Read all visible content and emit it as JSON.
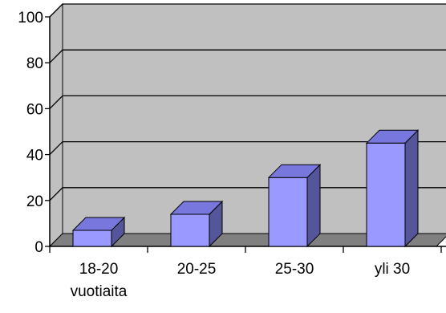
{
  "chart_data": {
    "type": "bar",
    "style": "3d-column",
    "categories": [
      [
        "18-20",
        "vuotiaita"
      ],
      [
        "20-25"
      ],
      [
        "25-30"
      ],
      [
        "yli 30"
      ]
    ],
    "values": [
      7,
      14,
      30,
      45
    ],
    "ylim": [
      0,
      100
    ],
    "yticks": [
      "0",
      "20",
      "40",
      "60",
      "80",
      "100"
    ],
    "grid": true,
    "title": "",
    "xlabel": "",
    "ylabel": "",
    "colors": {
      "bar_front": "#9999ff",
      "bar_top": "#7777dd",
      "bar_side": "#555599",
      "wall": "#c0c0c0",
      "floor": "#808080",
      "gridline": "#000000"
    }
  }
}
